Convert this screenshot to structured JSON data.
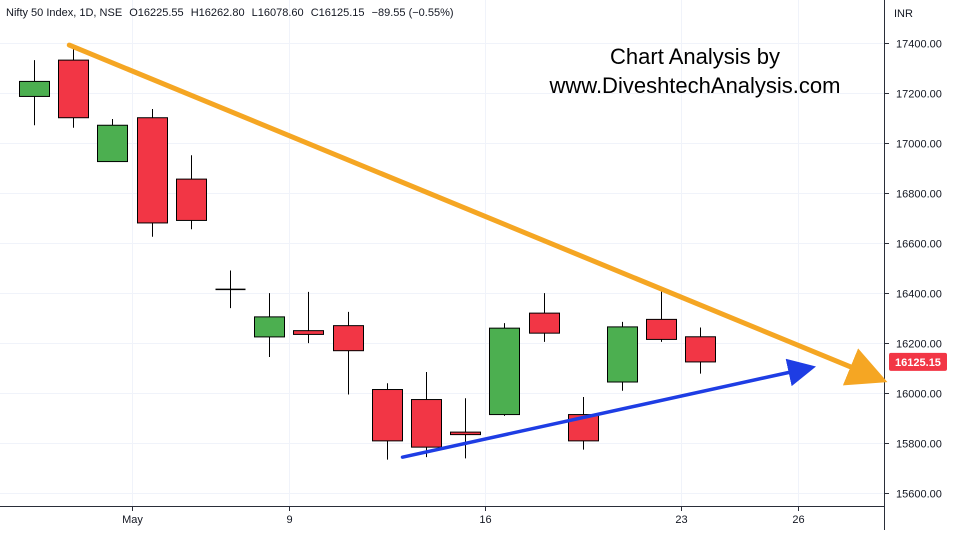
{
  "header": {
    "symbol": "Nifty 50 Index, 1D, NSE",
    "open": "O16225.55",
    "high": "H16262.80",
    "low": "L16078.60",
    "close": "C16125.15",
    "change": "−89.55 (−0.55%)"
  },
  "watermark": {
    "line1": "Chart Analysis by",
    "line2": "www.DiveshtechAnalysis.com"
  },
  "price_axis": {
    "currency": "INR",
    "last_price_label": "16125.15"
  },
  "colors": {
    "up": "#4caf50",
    "down": "#f23645",
    "trend_down": "#f5a623",
    "trend_up": "#1e3de4",
    "doji": "#000000"
  },
  "chart_data": {
    "type": "candlestick",
    "title": "",
    "ylim": [
      15550,
      17570
    ],
    "y_ticks": [
      15600,
      15800,
      16000,
      16200,
      16400,
      16600,
      16800,
      17000,
      17200,
      17400
    ],
    "y_tick_labels": [
      "15600.00",
      "15800.00",
      "16000.00",
      "16200.00",
      "16400.00",
      "16600.00",
      "16800.00",
      "17000.00",
      "17200.00",
      "17400.00"
    ],
    "x_tick_labels": [
      {
        "label": "May",
        "index": 2.5
      },
      {
        "label": "9",
        "index": 6.5
      },
      {
        "label": "16",
        "index": 11.5
      },
      {
        "label": "23",
        "index": 16.5
      },
      {
        "label": "26",
        "index": 19.5
      }
    ],
    "candles": [
      {
        "o": 17185,
        "h": 17330,
        "l": 17070,
        "c": 17245
      },
      {
        "o": 17330,
        "h": 17380,
        "l": 17060,
        "c": 17100
      },
      {
        "o": 16925,
        "h": 17095,
        "l": 16925,
        "c": 17070
      },
      {
        "o": 17100,
        "h": 17135,
        "l": 16625,
        "c": 16680
      },
      {
        "o": 16855,
        "h": 16950,
        "l": 16655,
        "c": 16690
      },
      {
        "o": 16410,
        "h": 16490,
        "l": 16340,
        "c": 16415
      },
      {
        "o": 16225,
        "h": 16400,
        "l": 16145,
        "c": 16305
      },
      {
        "o": 16250,
        "h": 16405,
        "l": 16200,
        "c": 16235
      },
      {
        "o": 16270,
        "h": 16325,
        "l": 15995,
        "c": 16170
      },
      {
        "o": 16015,
        "h": 16040,
        "l": 15735,
        "c": 15810
      },
      {
        "o": 15975,
        "h": 16085,
        "l": 15745,
        "c": 15785
      },
      {
        "o": 15845,
        "h": 15980,
        "l": 15740,
        "c": 15835
      },
      {
        "o": 15915,
        "h": 16280,
        "l": 15910,
        "c": 16260
      },
      {
        "o": 16320,
        "h": 16400,
        "l": 16205,
        "c": 16240
      },
      {
        "o": 15915,
        "h": 15985,
        "l": 15775,
        "c": 15810
      },
      {
        "o": 16045,
        "h": 16285,
        "l": 16010,
        "c": 16265
      },
      {
        "o": 16295,
        "h": 16415,
        "l": 16205,
        "c": 16215
      },
      {
        "o": 16225.55,
        "h": 16262.8,
        "l": 16078.6,
        "c": 16125.15
      }
    ],
    "trendlines": [
      {
        "name": "",
        "color": "#f5a623",
        "from": {
          "index": 0.9,
          "price": 17390
        },
        "to": {
          "index": 21.3,
          "price": 16075
        }
      },
      {
        "name": "",
        "color": "#1e3de4",
        "from": {
          "index": 9.4,
          "price": 15745
        },
        "to": {
          "index": 19.6,
          "price": 16095
        }
      }
    ]
  }
}
